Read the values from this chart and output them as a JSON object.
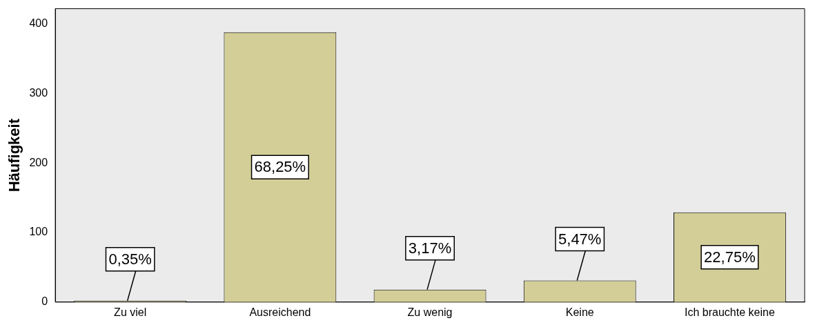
{
  "chart_data": {
    "type": "bar",
    "ylabel": "Häufigkeit",
    "categories": [
      "Zu viel",
      "Ausreichend",
      "Zu wenig",
      "Keine",
      "Ich brauchte keine"
    ],
    "values": [
      2,
      388,
      18,
      31,
      129
    ],
    "annotations": [
      {
        "text": "0,35%",
        "x": "Zu viel",
        "y": 2
      },
      "68,25%",
      {
        "text": "3,17%",
        "x": "Zu wenig",
        "y": 18
      },
      {
        "text": "5,47%",
        "x": "Keine",
        "y": 31
      },
      "22,75%"
    ],
    "color": "#d3ce97",
    "ylim": [
      0,
      422
    ],
    "yticks": [
      0,
      100,
      200,
      300,
      400
    ],
    "grid": false,
    "legend": false
  }
}
